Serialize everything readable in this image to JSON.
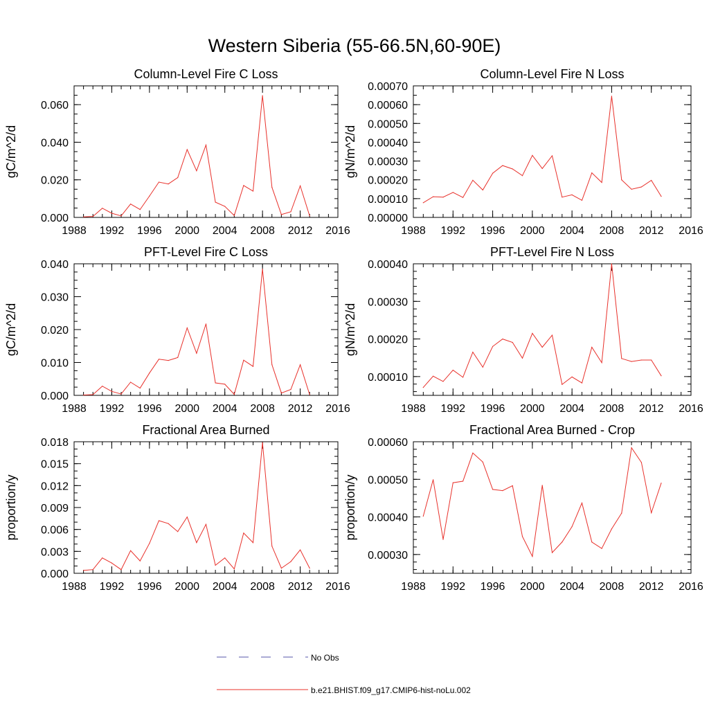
{
  "title": "Western Siberia (55-66.5N,60-90E)",
  "legend": [
    {
      "label": "No Obs",
      "color": "#5555aa",
      "dash": true
    },
    {
      "label": "b.e21.BHIST.f09_g17.CMIP6-hist-noLu.002",
      "color": "#e8302a",
      "dash": false
    }
  ],
  "chart_data": [
    {
      "type": "line",
      "title": "Column-Level Fire C Loss",
      "ylabel": "gC/m^2/d",
      "xlim": [
        1988,
        2016
      ],
      "ylim": [
        0,
        0.07
      ],
      "x_ticks": [
        1988,
        1992,
        1996,
        2000,
        2004,
        2008,
        2012,
        2016
      ],
      "y_ticks": [
        0,
        0.02,
        0.04,
        0.06
      ],
      "y_tick_labels": [
        "0.000",
        "0.020",
        "0.040",
        "0.060"
      ],
      "y_minor": 0.005,
      "series": [
        {
          "color": "#e8302a",
          "x": [
            1989,
            1990,
            1991,
            1992,
            1993,
            1994,
            1995,
            1996,
            1997,
            1998,
            1999,
            2000,
            2001,
            2002,
            2003,
            2004,
            2005,
            2006,
            2007,
            2008,
            2009,
            2010,
            2011,
            2012,
            2013
          ],
          "values": [
            0.0003,
            0.0005,
            0.0049,
            0.0022,
            0.0008,
            0.0071,
            0.0042,
            0.0114,
            0.0188,
            0.0178,
            0.0212,
            0.0361,
            0.0248,
            0.0385,
            0.0081,
            0.0059,
            0.001,
            0.017,
            0.014,
            0.0648,
            0.016,
            0.0015,
            0.003,
            0.0168,
            0.0008
          ]
        }
      ]
    },
    {
      "type": "line",
      "title": "Column-Level Fire N Loss",
      "ylabel": "gN/m^2/d",
      "xlim": [
        1988,
        2016
      ],
      "ylim": [
        0,
        0.0007
      ],
      "x_ticks": [
        1988,
        1992,
        1996,
        2000,
        2004,
        2008,
        2012,
        2016
      ],
      "y_ticks": [
        0,
        0.0001,
        0.0002,
        0.0003,
        0.0004,
        0.0005,
        0.0006,
        0.0007
      ],
      "y_tick_labels": [
        "0.00000",
        "0.00010",
        "0.00020",
        "0.00030",
        "0.00040",
        "0.00050",
        "0.00060",
        "0.00070"
      ],
      "y_minor": 5e-05,
      "series": [
        {
          "color": "#e8302a",
          "x": [
            1989,
            1990,
            1991,
            1992,
            1993,
            1994,
            1995,
            1996,
            1997,
            1998,
            1999,
            2000,
            2001,
            2002,
            2003,
            2004,
            2005,
            2006,
            2007,
            2008,
            2009,
            2010,
            2011,
            2012,
            2013
          ],
          "values": [
            7.8e-05,
            0.00011,
            0.000108,
            0.000133,
            0.000106,
            0.000198,
            0.000146,
            0.000235,
            0.000276,
            0.000258,
            0.000222,
            0.00033,
            0.00026,
            0.000328,
            0.000108,
            0.00012,
            9.1e-05,
            0.000237,
            0.000186,
            0.000645,
            0.0002,
            0.00015,
            0.000162,
            0.000197,
            0.000112
          ]
        }
      ]
    },
    {
      "type": "line",
      "title": "PFT-Level Fire C Loss",
      "ylabel": "gC/m^2/d",
      "xlim": [
        1988,
        2016
      ],
      "ylim": [
        0,
        0.04
      ],
      "x_ticks": [
        1988,
        1992,
        1996,
        2000,
        2004,
        2008,
        2012,
        2016
      ],
      "y_ticks": [
        0,
        0.01,
        0.02,
        0.03,
        0.04
      ],
      "y_tick_labels": [
        "0.000",
        "0.010",
        "0.020",
        "0.030",
        "0.040"
      ],
      "y_minor": 0.0025,
      "series": [
        {
          "color": "#e8302a",
          "x": [
            1989,
            1990,
            1991,
            1992,
            1993,
            1994,
            1995,
            1996,
            1997,
            1998,
            1999,
            2000,
            2001,
            2002,
            2003,
            2004,
            2005,
            2006,
            2007,
            2008,
            2009,
            2010,
            2011,
            2012,
            2013
          ],
          "values": [
            0.0001,
            0.0002,
            0.0028,
            0.0012,
            0.0004,
            0.004,
            0.0022,
            0.0068,
            0.011,
            0.0106,
            0.0115,
            0.0205,
            0.0128,
            0.0217,
            0.0038,
            0.0034,
            0.0003,
            0.0107,
            0.0088,
            0.0384,
            0.0093,
            0.0007,
            0.0018,
            0.0093,
            0.0002
          ]
        }
      ]
    },
    {
      "type": "line",
      "title": "PFT-Level Fire N Loss",
      "ylabel": "gN/m^2/d",
      "xlim": [
        1988,
        2016
      ],
      "ylim": [
        5e-05,
        0.0004
      ],
      "x_ticks": [
        1988,
        1992,
        1996,
        2000,
        2004,
        2008,
        2012,
        2016
      ],
      "y_ticks": [
        0.0001,
        0.0002,
        0.0003,
        0.0004
      ],
      "y_tick_labels": [
        "0.00010",
        "0.00020",
        "0.00030",
        "0.00040"
      ],
      "y_minor": 2e-05,
      "series": [
        {
          "color": "#e8302a",
          "x": [
            1989,
            1990,
            1991,
            1992,
            1993,
            1994,
            1995,
            1996,
            1997,
            1998,
            1999,
            2000,
            2001,
            2002,
            2003,
            2004,
            2005,
            2006,
            2007,
            2008,
            2009,
            2010,
            2011,
            2012,
            2013
          ],
          "values": [
            7.1e-05,
            0.000101,
            8.7e-05,
            0.000117,
            9.8e-05,
            0.000165,
            0.000125,
            0.00018,
            0.0002,
            0.000191,
            0.000149,
            0.000215,
            0.000178,
            0.00021,
            7.9e-05,
            9.9e-05,
            8.3e-05,
            0.000178,
            0.000137,
            0.0004,
            0.000148,
            0.00014,
            0.000144,
            0.000144,
            0.000102
          ]
        }
      ]
    },
    {
      "type": "line",
      "title": "Fractional Area Burned",
      "ylabel": "proportion/y",
      "xlim": [
        1988,
        2016
      ],
      "ylim": [
        0,
        0.018
      ],
      "x_ticks": [
        1988,
        1992,
        1996,
        2000,
        2004,
        2008,
        2012,
        2016
      ],
      "y_ticks": [
        0,
        0.003,
        0.006,
        0.009,
        0.012,
        0.015,
        0.018
      ],
      "y_tick_labels": [
        "0.000",
        "0.003",
        "0.006",
        "0.009",
        "0.012",
        "0.015",
        "0.018"
      ],
      "y_minor": 0.001,
      "series": [
        {
          "color": "#e8302a",
          "x": [
            1989,
            1990,
            1991,
            1992,
            1993,
            1994,
            1995,
            1996,
            1997,
            1998,
            1999,
            2000,
            2001,
            2002,
            2003,
            2004,
            2005,
            2006,
            2007,
            2008,
            2009,
            2010,
            2011,
            2012,
            2013
          ],
          "values": [
            0.0004,
            0.0005,
            0.0021,
            0.0014,
            0.0005,
            0.0031,
            0.0017,
            0.0041,
            0.0072,
            0.0068,
            0.0057,
            0.0077,
            0.0042,
            0.0067,
            0.0011,
            0.0021,
            0.0006,
            0.0055,
            0.0042,
            0.0179,
            0.0037,
            0.0007,
            0.0016,
            0.0032,
            0.0007
          ]
        }
      ]
    },
    {
      "type": "line",
      "title": "Fractional Area Burned - Crop",
      "ylabel": "proportion/y",
      "xlim": [
        1988,
        2016
      ],
      "ylim": [
        0.00025,
        0.0006
      ],
      "x_ticks": [
        1988,
        1992,
        1996,
        2000,
        2004,
        2008,
        2012,
        2016
      ],
      "y_ticks": [
        0.0003,
        0.0004,
        0.0005,
        0.0006
      ],
      "y_tick_labels": [
        "0.00030",
        "0.00040",
        "0.00050",
        "0.00060"
      ],
      "y_minor": 2e-05,
      "series": [
        {
          "color": "#e8302a",
          "x": [
            1989,
            1990,
            1991,
            1992,
            1993,
            1994,
            1995,
            1996,
            1997,
            1998,
            1999,
            2000,
            2001,
            2002,
            2003,
            2004,
            2005,
            2006,
            2007,
            2008,
            2009,
            2010,
            2011,
            2012,
            2013
          ],
          "values": [
            0.000402,
            0.000499,
            0.00034,
            0.000491,
            0.000495,
            0.00057,
            0.000546,
            0.000473,
            0.00047,
            0.000483,
            0.000348,
            0.000295,
            0.000484,
            0.000305,
            0.000333,
            0.000374,
            0.000437,
            0.000333,
            0.000316,
            0.000368,
            0.00041,
            0.000584,
            0.000545,
            0.000411,
            0.00049
          ]
        }
      ]
    }
  ]
}
